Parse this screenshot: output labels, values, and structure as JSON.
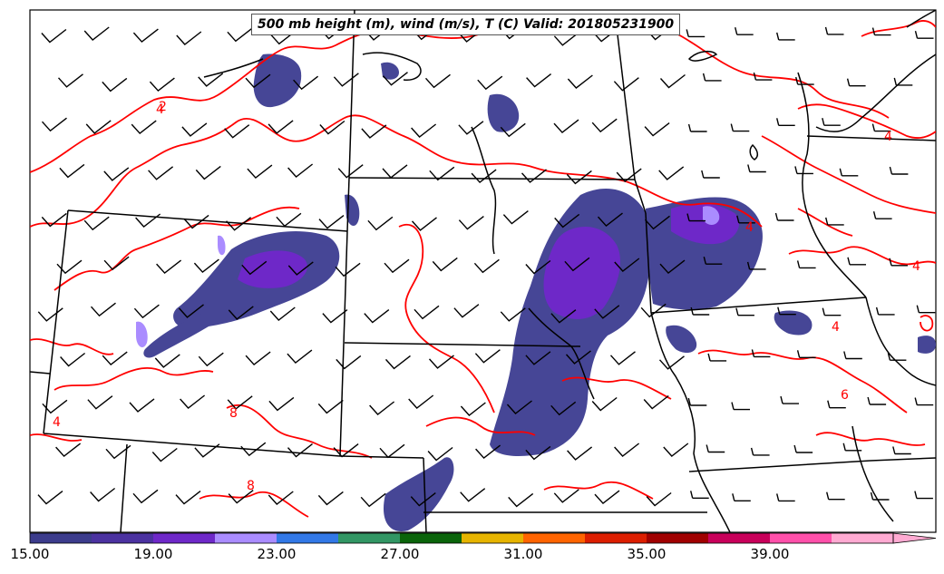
{
  "title": "500 mb height (m), wind (m/s), T (C) Valid: 201805231900",
  "colorbar": {
    "tick_labels": [
      "15.00",
      "19.00",
      "23.00",
      "27.00",
      "31.00",
      "35.00",
      "39.00"
    ],
    "colors": [
      "#3c3c8c",
      "#4b32a0",
      "#6e28c8",
      "#aa8cff",
      "#3278e6",
      "#329664",
      "#0a640a",
      "#e6b400",
      "#ff6400",
      "#dc1e00",
      "#a00000",
      "#c8005a",
      "#ff50aa",
      "#ffaad2"
    ],
    "extend": "max"
  },
  "contour_labels": [
    "4",
    "4",
    "2",
    "4",
    "4",
    "6",
    "4",
    "4",
    "8",
    "8"
  ],
  "contour_color": "#ff0000",
  "wind_barb_color": "#000000",
  "boundary_color": "#000000"
}
